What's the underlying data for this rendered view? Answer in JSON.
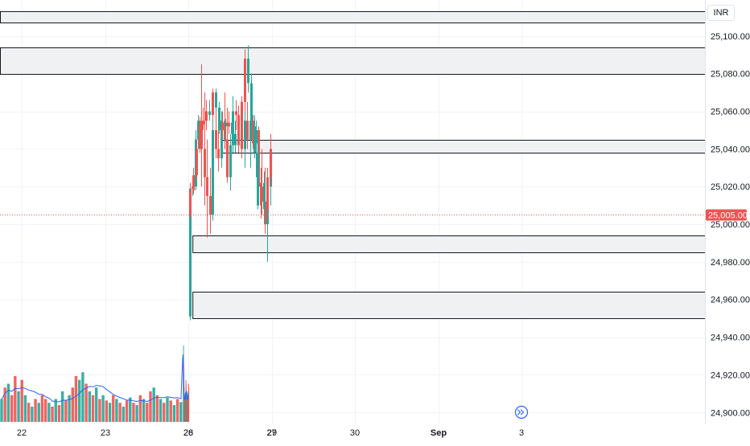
{
  "currency": "INR",
  "current_price_label": "25,005.00",
  "price_ticks": [
    "25,100.00",
    "25,080.00",
    "25,060.00",
    "25,040.00",
    "25,020.00",
    "25,000.00",
    "24,980.00",
    "24,960.00",
    "24,940.00",
    "24,920.00",
    "24,900.00"
  ],
  "time_ticks": [
    "22",
    "23",
    "26",
    "27",
    "28",
    "29",
    "30",
    "Sep",
    "3"
  ],
  "colors": {
    "up": "#26a69a",
    "down": "#ef5350",
    "ma_line": "#2962ff",
    "zone_fill": "#f0f1f3",
    "zone_border": "#131722",
    "price_line": "#ef5350"
  },
  "icons": {
    "scroll_to_realtime": "double-chevron-right-icon"
  },
  "chart_data": {
    "type": "candlestick",
    "y_range": [
      24895,
      25117
    ],
    "current_price": 25005,
    "zones": [
      {
        "from_day": 21.0,
        "to_day": 31.2,
        "top": 25113,
        "bottom": 25107
      },
      {
        "from_day": 21.0,
        "to_day": 31.2,
        "top": 25094,
        "bottom": 25080
      },
      {
        "from_day": 27.6,
        "to_day": 31.2,
        "top": 25045,
        "bottom": 25038
      },
      {
        "from_day": 25.95,
        "to_day": 31.2,
        "top": 24994,
        "bottom": 24985
      },
      {
        "from_day": 25.95,
        "to_day": 31.2,
        "top": 24964,
        "bottom": 24950
      }
    ],
    "candles_26": [
      {
        "o": 24951,
        "h": 24958,
        "l": 24949,
        "c": 25019
      },
      {
        "o": 25019,
        "h": 25022,
        "l": 25015,
        "c": 25020
      },
      {
        "o": 25020,
        "h": 25050,
        "l": 25018,
        "c": 25045
      },
      {
        "o": 25045,
        "h": 25058,
        "l": 25040,
        "c": 25055
      },
      {
        "o": 25055,
        "h": 25085,
        "l": 25020,
        "c": 25040
      },
      {
        "o": 25040,
        "h": 25070,
        "l": 25010,
        "c": 25025
      },
      {
        "o": 25025,
        "h": 25045,
        "l": 24993,
        "c": 25015
      },
      {
        "o": 25015,
        "h": 25030,
        "l": 24995,
        "c": 25005
      },
      {
        "o": 25005,
        "h": 25060,
        "l": 25002,
        "c": 25050
      },
      {
        "o": 25050,
        "h": 25065,
        "l": 25035,
        "c": 25040
      },
      {
        "o": 25040,
        "h": 25058,
        "l": 25028,
        "c": 25035
      },
      {
        "o": 25035,
        "h": 25060,
        "l": 25030,
        "c": 25055
      },
      {
        "o": 25055,
        "h": 25070,
        "l": 25040,
        "c": 25045
      },
      {
        "o": 25045,
        "h": 25062,
        "l": 25022,
        "c": 25025
      },
      {
        "o": 25025,
        "h": 25048,
        "l": 25018,
        "c": 25042
      },
      {
        "o": 25042,
        "h": 25068,
        "l": 25038,
        "c": 25060
      },
      {
        "o": 25060,
        "h": 25066,
        "l": 25050,
        "c": 25058
      },
      {
        "o": 25058,
        "h": 25063,
        "l": 25045,
        "c": 25050
      },
      {
        "o": 25050,
        "h": 25060,
        "l": 25035,
        "c": 25040
      },
      {
        "o": 25040,
        "h": 25060,
        "l": 25030,
        "c": 25055
      },
      {
        "o": 25055,
        "h": 25065,
        "l": 25040,
        "c": 25045
      },
      {
        "o": 25045,
        "h": 25060,
        "l": 25030,
        "c": 25055
      },
      {
        "o": 25055,
        "h": 25058,
        "l": 25040,
        "c": 25043
      },
      {
        "o": 25043,
        "h": 25055,
        "l": 25025,
        "c": 25050
      },
      {
        "o": 25050,
        "h": 25052,
        "l": 25015,
        "c": 25020
      },
      {
        "o": 25020,
        "h": 25040,
        "l": 25005,
        "c": 25012
      },
      {
        "o": 25012,
        "h": 25030,
        "l": 24995,
        "c": 25000
      },
      {
        "o": 25000,
        "h": 25025,
        "l": 24980,
        "c": 25020
      },
      {
        "o": 25020,
        "h": 25045,
        "l": 25010,
        "c": 25040
      }
    ],
    "candles_27": [
      {
        "o": 25040,
        "h": 25048,
        "l": 25020,
        "c": 25025
      },
      {
        "o": 25025,
        "h": 25030,
        "l": 25002,
        "c": 25008
      },
      {
        "o": 25008,
        "h": 25028,
        "l": 25000,
        "c": 25022
      },
      {
        "o": 25022,
        "h": 25030,
        "l": 25003,
        "c": 25010
      },
      {
        "o": 25010,
        "h": 25045,
        "l": 25008,
        "c": 25038
      },
      {
        "o": 25038,
        "h": 25058,
        "l": 25035,
        "c": 25052
      },
      {
        "o": 25052,
        "h": 25080,
        "l": 25048,
        "c": 25075
      },
      {
        "o": 25075,
        "h": 25095,
        "l": 25070,
        "c": 25088
      },
      {
        "o": 25088,
        "h": 25093,
        "l": 25060,
        "c": 25065
      },
      {
        "o": 25065,
        "h": 25068,
        "l": 25048,
        "c": 25050
      },
      {
        "o": 25050,
        "h": 25058,
        "l": 25038,
        "c": 25042
      },
      {
        "o": 25042,
        "h": 25055,
        "l": 25038,
        "c": 25048
      },
      {
        "o": 25048,
        "h": 25058,
        "l": 25045,
        "c": 25054
      },
      {
        "o": 25054,
        "h": 25060,
        "l": 25048,
        "c": 25052
      },
      {
        "o": 25052,
        "h": 25056,
        "l": 25044,
        "c": 25054
      },
      {
        "o": 25054,
        "h": 25060,
        "l": 25046,
        "c": 25050
      },
      {
        "o": 25050,
        "h": 25065,
        "l": 25048,
        "c": 25062
      },
      {
        "o": 25062,
        "h": 25072,
        "l": 25060,
        "c": 25070
      },
      {
        "o": 25070,
        "h": 25072,
        "l": 25055,
        "c": 25058
      },
      {
        "o": 25058,
        "h": 25066,
        "l": 25055,
        "c": 25060
      },
      {
        "o": 25060,
        "h": 25066,
        "l": 25050,
        "c": 25055
      },
      {
        "o": 25055,
        "h": 25062,
        "l": 25050,
        "c": 25053
      },
      {
        "o": 25053,
        "h": 25057,
        "l": 25038,
        "c": 25040
      },
      {
        "o": 25040,
        "h": 25045,
        "l": 25024,
        "c": 25026
      },
      {
        "o": 25026,
        "h": 25030,
        "l": 25016,
        "c": 25018
      },
      {
        "o": 25018,
        "h": 25022,
        "l": 25003,
        "c": 25005
      }
    ],
    "volume_22_25": [
      {
        "v": 0.3,
        "d": "up"
      },
      {
        "v": 0.45,
        "d": "down"
      },
      {
        "v": 0.5,
        "d": "up"
      },
      {
        "v": 0.35,
        "d": "down"
      },
      {
        "v": 0.6,
        "d": "down"
      },
      {
        "v": 0.4,
        "d": "up"
      },
      {
        "v": 0.55,
        "d": "down"
      },
      {
        "v": 0.35,
        "d": "up"
      },
      {
        "v": 0.25,
        "d": "down"
      },
      {
        "v": 0.2,
        "d": "up"
      },
      {
        "v": 0.3,
        "d": "down"
      },
      {
        "v": 0.25,
        "d": "up"
      },
      {
        "v": 0.35,
        "d": "down"
      },
      {
        "v": 0.3,
        "d": "down"
      },
      {
        "v": 0.25,
        "d": "up"
      },
      {
        "v": 0.2,
        "d": "down"
      },
      {
        "v": 0.3,
        "d": "up"
      },
      {
        "v": 0.22,
        "d": "down"
      },
      {
        "v": 0.4,
        "d": "up"
      },
      {
        "v": 0.28,
        "d": "down"
      },
      {
        "v": 0.35,
        "d": "up"
      },
      {
        "v": 0.45,
        "d": "down"
      },
      {
        "v": 0.6,
        "d": "down"
      },
      {
        "v": 0.55,
        "d": "up"
      },
      {
        "v": 0.65,
        "d": "up"
      },
      {
        "v": 0.5,
        "d": "down"
      },
      {
        "v": 0.4,
        "d": "up"
      },
      {
        "v": 0.35,
        "d": "down"
      },
      {
        "v": 0.45,
        "d": "up"
      },
      {
        "v": 0.3,
        "d": "down"
      },
      {
        "v": 0.35,
        "d": "up"
      },
      {
        "v": 0.28,
        "d": "down"
      },
      {
        "v": 0.25,
        "d": "up"
      },
      {
        "v": 0.35,
        "d": "down"
      },
      {
        "v": 0.3,
        "d": "up"
      },
      {
        "v": 0.25,
        "d": "down"
      },
      {
        "v": 0.2,
        "d": "up"
      },
      {
        "v": 0.28,
        "d": "down"
      },
      {
        "v": 0.32,
        "d": "up"
      },
      {
        "v": 0.25,
        "d": "down"
      },
      {
        "v": 0.22,
        "d": "up"
      },
      {
        "v": 0.35,
        "d": "down"
      },
      {
        "v": 0.3,
        "d": "up"
      },
      {
        "v": 0.25,
        "d": "down"
      },
      {
        "v": 0.4,
        "d": "down"
      },
      {
        "v": 0.45,
        "d": "up"
      },
      {
        "v": 0.35,
        "d": "down"
      },
      {
        "v": 0.3,
        "d": "up"
      },
      {
        "v": 0.25,
        "d": "down"
      },
      {
        "v": 0.32,
        "d": "up"
      },
      {
        "v": 0.28,
        "d": "down"
      },
      {
        "v": 0.22,
        "d": "up"
      },
      {
        "v": 0.3,
        "d": "down"
      },
      {
        "v": 0.26,
        "d": "up"
      }
    ],
    "volume_26_27": [
      {
        "v": 0.85,
        "d": "up"
      },
      {
        "v": 0.8,
        "d": "up"
      },
      {
        "v": 1.0,
        "d": "up"
      },
      {
        "v": 0.65,
        "d": "up"
      },
      {
        "v": 0.75,
        "d": "down"
      },
      {
        "v": 0.55,
        "d": "up"
      },
      {
        "v": 0.45,
        "d": "down"
      },
      {
        "v": 0.35,
        "d": "up"
      },
      {
        "v": 0.3,
        "d": "down"
      },
      {
        "v": 0.35,
        "d": "up"
      },
      {
        "v": 0.28,
        "d": "down"
      },
      {
        "v": 0.32,
        "d": "up"
      },
      {
        "v": 0.25,
        "d": "down"
      },
      {
        "v": 0.3,
        "d": "down"
      },
      {
        "v": 0.28,
        "d": "up"
      },
      {
        "v": 0.35,
        "d": "down"
      },
      {
        "v": 0.3,
        "d": "up"
      },
      {
        "v": 0.25,
        "d": "down"
      },
      {
        "v": 0.38,
        "d": "up"
      },
      {
        "v": 0.3,
        "d": "down"
      },
      {
        "v": 0.28,
        "d": "up"
      },
      {
        "v": 0.35,
        "d": "down"
      },
      {
        "v": 0.25,
        "d": "up"
      },
      {
        "v": 0.3,
        "d": "down"
      },
      {
        "v": 0.55,
        "d": "down"
      },
      {
        "v": 0.5,
        "d": "down"
      },
      {
        "v": 0.4,
        "d": "up"
      },
      {
        "v": 0.35,
        "d": "down"
      },
      {
        "v": 0.42,
        "d": "up"
      },
      {
        "v": 0.3,
        "d": "down"
      },
      {
        "v": 0.25,
        "d": "down"
      },
      {
        "v": 0.35,
        "d": "up"
      },
      {
        "v": 0.3,
        "d": "down"
      },
      {
        "v": 0.28,
        "d": "up"
      },
      {
        "v": 0.4,
        "d": "up"
      },
      {
        "v": 0.35,
        "d": "up"
      },
      {
        "v": 0.3,
        "d": "down"
      },
      {
        "v": 0.25,
        "d": "down"
      },
      {
        "v": 0.32,
        "d": "up"
      },
      {
        "v": 0.28,
        "d": "down"
      },
      {
        "v": 0.3,
        "d": "up"
      },
      {
        "v": 0.22,
        "d": "down"
      },
      {
        "v": 0.35,
        "d": "up"
      },
      {
        "v": 0.3,
        "d": "down"
      },
      {
        "v": 0.28,
        "d": "up"
      },
      {
        "v": 0.32,
        "d": "down"
      },
      {
        "v": 0.35,
        "d": "down"
      },
      {
        "v": 0.4,
        "d": "down"
      },
      {
        "v": 0.45,
        "d": "down"
      },
      {
        "v": 0.5,
        "d": "down"
      },
      {
        "v": 0.42,
        "d": "down"
      }
    ]
  }
}
